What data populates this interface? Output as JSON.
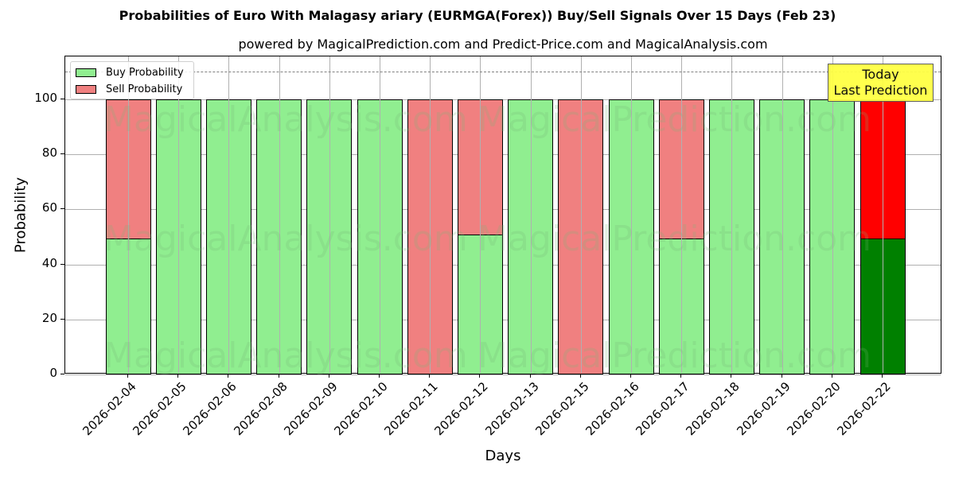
{
  "title": "Probabilities of Euro With Malagasy ariary (EURMGA(Forex)) Buy/Sell Signals Over 15 Days (Feb 23)",
  "subtitle": "powered by MagicalPrediction.com and Predict-Price.com and MagicalAnalysis.com",
  "xlabel": "Days",
  "ylabel": "Probability",
  "legend": {
    "buy": "Buy Probability",
    "sell": "Sell Probability"
  },
  "annotation": {
    "line1": "Today",
    "line2": "Last Prediction"
  },
  "watermarks": {
    "left": "MagicalAnalysis.com",
    "right": "MagicalPrediction.com"
  },
  "colors": {
    "buy": "#90ee90",
    "sell": "#f08080",
    "buy_last": "#008000",
    "sell_last": "#ff0000",
    "annotation_bg": "#ffff44",
    "refline": "#808080"
  },
  "yticks": [
    "0",
    "20",
    "40",
    "60",
    "80",
    "100"
  ],
  "chart_data": {
    "type": "bar",
    "stacked": true,
    "title": "Probabilities of Euro With Malagasy ariary (EURMGA(Forex)) Buy/Sell Signals Over 15 Days (Feb 23)",
    "subtitle": "powered by MagicalPrediction.com and Predict-Price.com and MagicalAnalysis.com",
    "xlabel": "Days",
    "ylabel": "Probability",
    "ylim": [
      0,
      115
    ],
    "yticks": [
      0,
      20,
      40,
      60,
      80,
      100
    ],
    "grid": true,
    "legend_position": "upper left",
    "reference_line": {
      "y": 110,
      "style": "dashed",
      "color": "#808080"
    },
    "annotation": {
      "text": "Today\nLast Prediction",
      "x": "2026-02-22"
    },
    "categories": [
      "2026-02-04",
      "2026-02-05",
      "2026-02-06",
      "2026-02-08",
      "2026-02-09",
      "2026-02-10",
      "2026-02-11",
      "2026-02-12",
      "2026-02-13",
      "2026-02-15",
      "2026-02-16",
      "2026-02-17",
      "2026-02-18",
      "2026-02-19",
      "2026-02-20",
      "2026-02-22"
    ],
    "series": [
      {
        "name": "Buy Probability",
        "color": "#90ee90",
        "values": [
          49.4,
          100,
          100,
          100,
          100,
          100,
          0,
          50.8,
          100,
          0,
          100,
          49.4,
          100,
          100,
          100,
          49.4
        ]
      },
      {
        "name": "Sell Probability",
        "color": "#f08080",
        "values": [
          50.6,
          0,
          0,
          0,
          0,
          0,
          100,
          49.2,
          0,
          100,
          0,
          50.6,
          0,
          0,
          0,
          50.6
        ]
      }
    ]
  }
}
